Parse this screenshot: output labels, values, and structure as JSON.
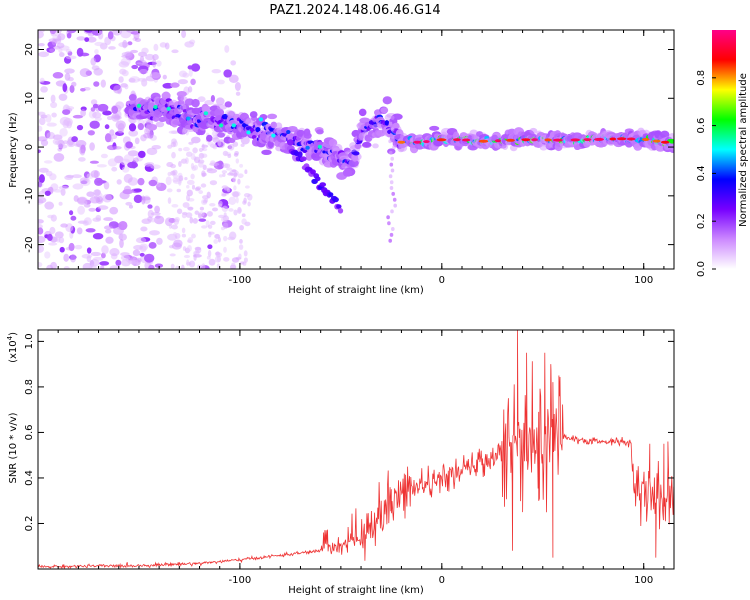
{
  "title": "PAZ1.2024.148.06.46.G14",
  "chart_data": [
    {
      "type": "heatmap",
      "xlabel": "Height of straight line (km)",
      "ylabel": "Frequency (Hz)",
      "xlim": [
        -200,
        115
      ],
      "ylim": [
        -25,
        24
      ],
      "x_ticks": [
        -100,
        0,
        100
      ],
      "x_tick_labels": [
        "-100",
        "0",
        "100"
      ],
      "y_ticks": [
        -20,
        -10,
        0,
        10,
        20
      ],
      "y_tick_labels": [
        "-20",
        "-10",
        "0",
        "10",
        "20"
      ],
      "colorbar": {
        "label": "Normalized spectral amplitude",
        "range": [
          0,
          1
        ],
        "ticks": [
          0.0,
          0.2,
          0.4,
          0.6,
          0.8
        ],
        "tick_labels": [
          "0.0",
          "0.2",
          "0.4",
          "0.6",
          "0.8"
        ],
        "colors": [
          "#ffffff",
          "#cc88ff",
          "#7700ff",
          "#0000ff",
          "#00ffff",
          "#00ff00",
          "#ffff00",
          "#ff0000",
          "#ff0088"
        ]
      },
      "ridge": {
        "x": [
          -150,
          -140,
          -130,
          -120,
          -110,
          -100,
          -90,
          -80,
          -70,
          -60,
          -50,
          -45,
          -40,
          -35,
          -30,
          -25,
          -20,
          -10,
          0,
          10,
          20,
          30,
          40,
          50,
          60,
          70,
          80,
          90,
          100,
          110
        ],
        "y": [
          8,
          8,
          7,
          6,
          5,
          4,
          3.5,
          2.5,
          1,
          -0.5,
          -2,
          -4,
          3,
          4,
          5,
          3,
          1,
          1,
          1.5,
          1.5,
          1.2,
          1.3,
          1.5,
          1.5,
          1.4,
          1.5,
          1.6,
          1.7,
          1.6,
          1
        ]
      },
      "branch": {
        "x": [
          -75,
          -70,
          -65,
          -60,
          -55,
          -50
        ],
        "y": [
          0,
          -2,
          -5,
          -8,
          -10,
          -13
        ]
      },
      "noise_region": {
        "x": [
          -200,
          -100
        ],
        "y": [
          -25,
          24
        ]
      }
    },
    {
      "type": "line",
      "xlabel": "Height of straight line (km)",
      "ylabel": "SNR (10 * v/v)",
      "scale_label": "(x10",
      "scale_exp": "4",
      "scale_close": ")",
      "xlim": [
        -200,
        115
      ],
      "ylim": [
        0,
        1.05
      ],
      "x_ticks": [
        -100,
        0,
        100
      ],
      "x_tick_labels": [
        "-100",
        "0",
        "100"
      ],
      "y_ticks": [
        0.2,
        0.4,
        0.6,
        0.8,
        1.0
      ],
      "y_tick_labels": [
        "0.2",
        "0.4",
        "0.6",
        "0.8",
        "1.0"
      ],
      "color": "#ee3333",
      "envelope": {
        "x": [
          -200,
          -150,
          -120,
          -100,
          -80,
          -60,
          -50,
          -40,
          -35,
          -30,
          -25,
          -20,
          -15,
          -10,
          -5,
          0,
          5,
          10,
          15,
          20,
          25,
          30,
          35,
          40,
          45,
          50,
          55,
          60,
          65,
          70,
          75,
          80,
          85,
          90,
          94,
          95,
          100,
          105,
          110,
          115
        ],
        "y": [
          0.01,
          0.015,
          0.025,
          0.04,
          0.06,
          0.08,
          0.1,
          0.13,
          0.17,
          0.22,
          0.28,
          0.32,
          0.35,
          0.37,
          0.38,
          0.39,
          0.41,
          0.43,
          0.45,
          0.47,
          0.49,
          0.53,
          0.62,
          0.6,
          0.57,
          0.58,
          0.6,
          0.58,
          0.57,
          0.56,
          0.56,
          0.56,
          0.56,
          0.56,
          0.55,
          0.35,
          0.33,
          0.33,
          0.3,
          0.34
        ]
      },
      "spikes": [
        {
          "x": 37.5,
          "y": 1.05
        },
        {
          "x": 40,
          "y": 0.25
        },
        {
          "x": 42,
          "y": 0.95
        },
        {
          "x": 51,
          "y": 0.95
        },
        {
          "x": 54,
          "y": 0.9
        },
        {
          "x": 55,
          "y": 0.05
        },
        {
          "x": 35,
          "y": 0.08
        },
        {
          "x": 48,
          "y": 0.3
        },
        {
          "x": 58,
          "y": 0.85
        },
        {
          "x": 106,
          "y": 0.05
        },
        {
          "x": 110,
          "y": 0.55
        },
        {
          "x": 112,
          "y": 0.56
        },
        {
          "x": 103,
          "y": 0.55
        },
        {
          "x": -30,
          "y": 0.3
        },
        {
          "x": -25,
          "y": 0.35
        }
      ]
    }
  ]
}
